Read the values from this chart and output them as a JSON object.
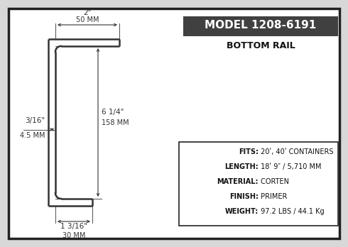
{
  "title": "MODEL 1208-6191",
  "subtitle": "BOTTOM RAIL",
  "bg_color": "#d8d8d8",
  "outer_border_color": "#222222",
  "inner_bg_color": "#ffffff",
  "model_box_bg": "#404040",
  "model_box_text_color": "#ffffff",
  "dim_color": "#333333",
  "shape_color": "#333333",
  "spec_box_border": "#222222",
  "dim1_label": "2\"",
  "dim1_sub": "50 MM",
  "dim2_label": "6 1/4\"",
  "dim2_sub": "158 MM",
  "dim3_label": "3/16\"",
  "dim3_sub": "4.5 MM",
  "dim4_label": "1 3/16\"",
  "dim4_sub": "30 MM",
  "spec_lines": [
    {
      "bold": "FITS:",
      "normal": " 20ʹ, 40ʹ CONTAINERS"
    },
    {
      "bold": "LENGTH:",
      "normal": " 18ʹ 9″ / 5,710 MM"
    },
    {
      "bold": "MATERIAL:",
      "normal": " CORTEN"
    },
    {
      "bold": "FINISH:",
      "normal": " PRIMER"
    },
    {
      "bold": "WEIGHT:",
      "normal": " 97.2 LBS / 44.1 Kg"
    }
  ]
}
